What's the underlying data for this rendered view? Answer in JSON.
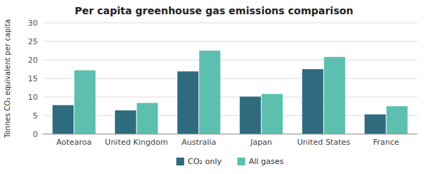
{
  "chart_data": {
    "type": "bar",
    "title": "Per capita greenhouse gas emissions comparison",
    "ylabel": "Tonnes CO₂ equivalent per capita",
    "categories": [
      "Aotearoa",
      "United Kingdom",
      "Australia",
      "Japan",
      "United States",
      "France"
    ],
    "series": [
      {
        "name": "CO₂ only",
        "color": "#2e6b7e",
        "values": [
          7.8,
          6.4,
          16.9,
          10.1,
          17.5,
          5.3
        ]
      },
      {
        "name": "All gases",
        "color": "#5dbfb0",
        "values": [
          17.2,
          8.4,
          22.5,
          10.8,
          20.8,
          7.5
        ]
      }
    ],
    "ylim": [
      0,
      30
    ],
    "yticks": [
      0,
      5,
      10,
      15,
      20,
      25,
      30
    ],
    "grid": true,
    "legend": "bottom"
  }
}
